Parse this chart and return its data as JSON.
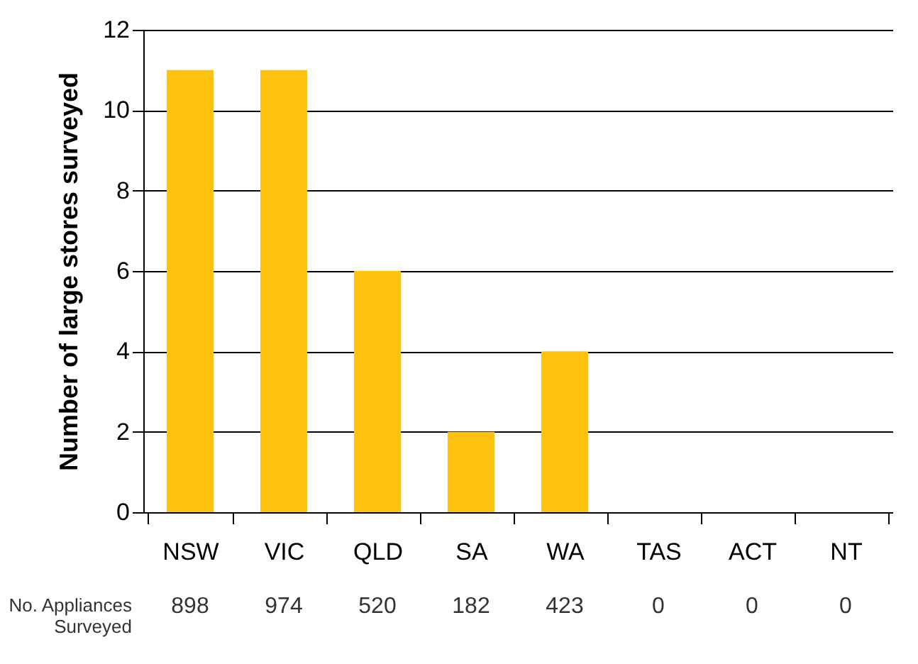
{
  "chart_data": {
    "type": "bar",
    "ylabel": "Number of large stores surveyed",
    "categories": [
      "NSW",
      "VIC",
      "QLD",
      "SA",
      "WA",
      "TAS",
      "ACT",
      "NT"
    ],
    "values": [
      11,
      11,
      6,
      2,
      4,
      0,
      0,
      0
    ],
    "color": "#ffc20e",
    "ylim": [
      0,
      12
    ],
    "yticks": [
      0,
      2,
      4,
      6,
      8,
      10,
      12
    ],
    "grid": "y",
    "annotations": [
      "No. Appliances\nSurveyed",
      "898",
      "974",
      "520",
      "182",
      "423",
      "0",
      "0",
      "0"
    ]
  }
}
